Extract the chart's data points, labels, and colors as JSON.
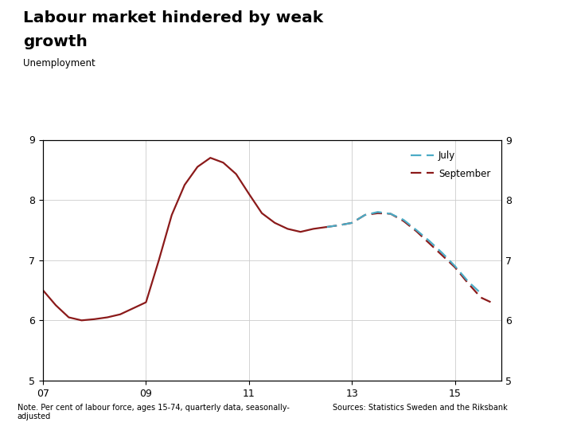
{
  "title_line1": "Labour market hindered by weak",
  "title_line2": "growth",
  "subtitle": "Unemployment",
  "note": "Note. Per cent of labour force, ages 15-74, quarterly data, seasonally-\nadjusted",
  "source": "Sources: Statistics Sweden and the Riksbank",
  "ylim": [
    5,
    9
  ],
  "yticks": [
    5,
    6,
    7,
    8,
    9
  ],
  "xlim": [
    2007.0,
    2015.9
  ],
  "xticks": [
    2007,
    2009,
    2011,
    2013,
    2015
  ],
  "xticklabels": [
    "07",
    "09",
    "11",
    "13",
    "15"
  ],
  "july_color": "#4BACC6",
  "september_color": "#8B1A1A",
  "background_color": "#FFFFFF",
  "footer_bar_color": "#1F3F7A",
  "logo_color": "#1F3F7A",
  "hist_split": 2012.5,
  "july_split": 2012.5,
  "hist_x": [
    2007.0,
    2007.25,
    2007.5,
    2007.75,
    2008.0,
    2008.25,
    2008.5,
    2008.75,
    2009.0,
    2009.25,
    2009.5,
    2009.75,
    2010.0,
    2010.25,
    2010.5,
    2010.75,
    2011.0,
    2011.25,
    2011.5,
    2011.75,
    2012.0,
    2012.25,
    2012.5
  ],
  "hist_y": [
    6.5,
    6.25,
    6.05,
    6.0,
    6.02,
    6.05,
    6.1,
    6.2,
    6.3,
    7.0,
    7.75,
    8.25,
    8.55,
    8.7,
    8.62,
    8.43,
    8.1,
    7.78,
    7.62,
    7.52,
    7.47,
    7.52,
    7.55
  ],
  "july_x": [
    2012.5,
    2012.75,
    2013.0,
    2013.25,
    2013.5,
    2013.75,
    2014.0,
    2014.25,
    2014.5,
    2014.75,
    2015.0,
    2015.25,
    2015.5
  ],
  "july_y": [
    7.55,
    7.58,
    7.62,
    7.75,
    7.8,
    7.77,
    7.67,
    7.5,
    7.32,
    7.12,
    6.9,
    6.65,
    6.45
  ],
  "sept_x": [
    2012.5,
    2012.75,
    2013.0,
    2013.25,
    2013.5,
    2013.75,
    2014.0,
    2014.25,
    2014.5,
    2014.75,
    2015.0,
    2015.25,
    2015.5,
    2015.75
  ],
  "sept_y": [
    7.55,
    7.58,
    7.62,
    7.75,
    7.78,
    7.77,
    7.65,
    7.48,
    7.28,
    7.08,
    6.88,
    6.62,
    6.38,
    6.28
  ]
}
